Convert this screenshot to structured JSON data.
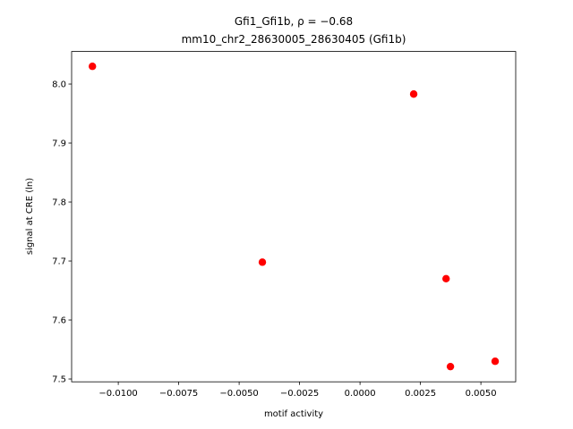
{
  "chart_data": {
    "type": "scatter",
    "title": "Gfi1_Gfi1b, ρ = −0.68",
    "subtitle": "mm10_chr2_28630005_28630405 (Gfi1b)",
    "x_label": "motif activity",
    "y_label": "signal at CRE (ln)",
    "color": "#ff0000",
    "x": [
      -0.01107,
      0.00222,
      -0.00404,
      0.00356,
      0.00374,
      0.00559
    ],
    "values": [
      8.03,
      7.983,
      7.698,
      7.67,
      7.521,
      7.53
    ],
    "xlim": [
      -0.01193,
      0.00644
    ],
    "ylim": [
      7.4952,
      8.0552
    ],
    "xticks": [
      {
        "value": -0.01,
        "label": "−0.0100"
      },
      {
        "value": -0.0075,
        "label": "−0.0075"
      },
      {
        "value": -0.005,
        "label": "−0.0050"
      },
      {
        "value": -0.0025,
        "label": "−0.0025"
      },
      {
        "value": 0,
        "label": "0.0000"
      },
      {
        "value": 0.0025,
        "label": "0.0025"
      },
      {
        "value": 0.005,
        "label": "0.0050"
      }
    ],
    "yticks": [
      7.5,
      7.6,
      7.7,
      7.8,
      7.9,
      {
        "value": 8,
        "label": "8.0"
      }
    ]
  }
}
